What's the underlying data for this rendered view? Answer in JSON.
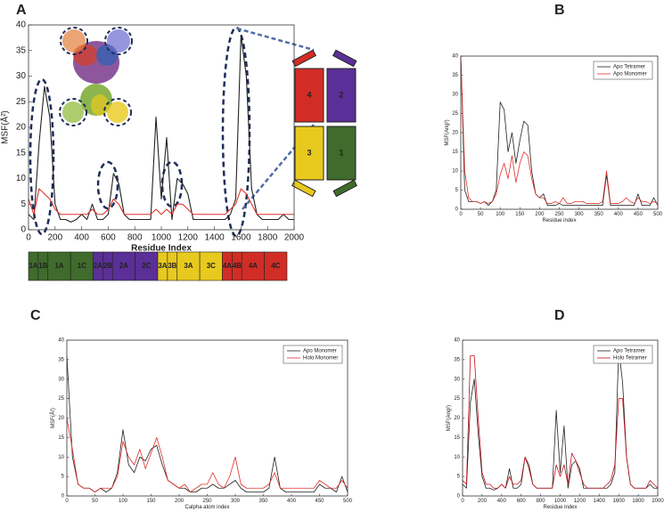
{
  "panel_labels": [
    "A",
    "B",
    "C",
    "D"
  ],
  "domain_bar": [
    {
      "label": "1A",
      "color": "#3f6b2c"
    },
    {
      "label": "1B",
      "color": "#3f6b2c"
    },
    {
      "label": "1A",
      "color": "#3f6b2c"
    },
    {
      "label": "1C",
      "color": "#3f6b2c"
    },
    {
      "label": "2A",
      "color": "#5a2f97"
    },
    {
      "label": "2B",
      "color": "#5a2f97"
    },
    {
      "label": "2A",
      "color": "#5a2f97"
    },
    {
      "label": "2C",
      "color": "#5a2f97"
    },
    {
      "label": "3A",
      "color": "#e8c91e"
    },
    {
      "label": "3B",
      "color": "#e8c91e"
    },
    {
      "label": "3A",
      "color": "#e8c91e"
    },
    {
      "label": "3C",
      "color": "#e8c91e"
    },
    {
      "label": "4A",
      "color": "#d12d26"
    },
    {
      "label": "4B",
      "color": "#d12d26"
    },
    {
      "label": "4A",
      "color": "#d12d26"
    },
    {
      "label": "4C",
      "color": "#d12d26"
    }
  ],
  "schematic": {
    "boxes": [
      "4",
      "2",
      "3",
      "1"
    ]
  },
  "chart_data": [
    {
      "type": "line",
      "xlabel": "Residue Index",
      "ylabel": "MSF(Å²)",
      "x": [
        0,
        40,
        80,
        120,
        160,
        200,
        240,
        280,
        320,
        360,
        400,
        440,
        480,
        520,
        560,
        600,
        640,
        680,
        720,
        760,
        800,
        840,
        880,
        920,
        960,
        1000,
        1040,
        1080,
        1120,
        1160,
        1200,
        1240,
        1280,
        1320,
        1360,
        1400,
        1440,
        1480,
        1520,
        1560,
        1600,
        1640,
        1680,
        1720,
        1760,
        1800,
        1840,
        1880,
        1920,
        1960,
        2000
      ],
      "series": [
        {
          "color": "#222222",
          "values": [
            3,
            2,
            17,
            28,
            22,
            5,
            2,
            2,
            1.5,
            2,
            3,
            2,
            5,
            2,
            2,
            3,
            11,
            9,
            3,
            2,
            2,
            2,
            2,
            2,
            22,
            6,
            18,
            2,
            10,
            9,
            7,
            2,
            2,
            2,
            2,
            2,
            2,
            2,
            3,
            6,
            38,
            30,
            8,
            3,
            2,
            2,
            2,
            2,
            3,
            2,
            2
          ]
        },
        {
          "color": "#e0302a",
          "values": [
            6,
            3,
            8,
            7,
            6,
            4,
            3,
            3,
            3,
            3,
            3,
            3,
            4,
            3,
            3,
            4,
            6,
            5,
            3,
            3,
            3,
            3,
            3,
            3,
            4,
            3,
            4,
            3,
            5,
            5,
            4,
            3,
            3,
            3,
            3,
            3,
            3,
            3,
            4,
            5,
            8,
            7,
            5,
            3,
            3,
            3,
            3,
            3,
            3,
            3,
            3
          ]
        }
      ],
      "xlim": [
        0,
        2000
      ],
      "xticks": [
        0,
        200,
        400,
        600,
        800,
        1000,
        1200,
        1400,
        1600,
        1800,
        2000
      ],
      "ylim": [
        0,
        40
      ],
      "yticks": [
        0,
        5,
        10,
        15,
        20,
        25,
        30,
        35,
        40
      ]
    },
    {
      "type": "line",
      "xlabel": "Residue index",
      "ylabel": "MSF(Ang²)",
      "x": [
        0,
        10,
        20,
        30,
        40,
        50,
        60,
        70,
        80,
        90,
        100,
        110,
        120,
        130,
        140,
        150,
        160,
        170,
        180,
        190,
        200,
        210,
        220,
        230,
        240,
        250,
        260,
        270,
        280,
        290,
        300,
        310,
        320,
        330,
        340,
        350,
        360,
        370,
        380,
        390,
        400,
        410,
        420,
        430,
        440,
        450,
        460,
        470,
        480,
        490,
        500
      ],
      "series": [
        {
          "name": "Apo Tetramer",
          "color": "#222222",
          "values": [
            40,
            5,
            2,
            2,
            2,
            1.5,
            2,
            1,
            2,
            5,
            28,
            26,
            15,
            20,
            12,
            18,
            23,
            22,
            10,
            4,
            3,
            4,
            1,
            1,
            1,
            1.5,
            1,
            1,
            1,
            1,
            1,
            1,
            1,
            1,
            1,
            1,
            1,
            9,
            1,
            1,
            1,
            1,
            1,
            1,
            1,
            4,
            1,
            1,
            1,
            3,
            1
          ]
        },
        {
          "name": "Apo Monomer",
          "color": "#e0302a",
          "values": [
            40,
            10,
            3,
            2,
            2,
            1.5,
            2,
            1.5,
            2,
            4,
            9,
            12,
            8,
            14,
            7,
            12,
            15,
            14,
            8,
            4,
            3,
            3,
            1.5,
            1.5,
            2,
            1.5,
            3,
            1.5,
            1.5,
            2,
            2,
            2,
            1.5,
            1.5,
            1.5,
            1.5,
            2,
            10,
            1.5,
            1.5,
            1.5,
            2,
            3,
            2,
            1.5,
            3,
            2,
            2,
            1.5,
            2,
            1.5
          ]
        }
      ],
      "xlim": [
        0,
        500
      ],
      "xticks": [
        0,
        50,
        100,
        150,
        200,
        250,
        300,
        350,
        400,
        450,
        500
      ],
      "ylim": [
        0,
        40
      ],
      "yticks": [
        0,
        5,
        10,
        15,
        20,
        25,
        30,
        35,
        40
      ],
      "legend": "upper right"
    },
    {
      "type": "line",
      "xlabel": "Calpha atom index",
      "ylabel": "MSF(Å²)",
      "x": [
        0,
        10,
        20,
        30,
        40,
        50,
        60,
        70,
        80,
        90,
        100,
        110,
        120,
        130,
        140,
        150,
        160,
        170,
        180,
        190,
        200,
        210,
        220,
        230,
        240,
        250,
        260,
        270,
        280,
        290,
        300,
        310,
        320,
        330,
        340,
        350,
        360,
        370,
        380,
        390,
        400,
        410,
        420,
        430,
        440,
        450,
        460,
        470,
        480,
        490,
        500
      ],
      "series": [
        {
          "name": "Apo Monomer",
          "color": "#222222",
          "values": [
            36,
            10,
            3,
            2,
            2,
            1,
            2,
            1,
            2,
            6,
            17,
            8,
            6,
            10,
            9,
            12,
            13,
            8,
            4,
            3,
            2,
            2,
            1,
            1,
            2,
            2,
            3,
            2,
            2,
            3,
            4,
            2,
            1,
            1,
            1,
            1,
            2,
            10,
            2,
            1,
            1,
            1,
            1,
            1,
            1,
            3,
            2,
            2,
            1,
            5,
            1
          ]
        },
        {
          "name": "Holo Monomer",
          "color": "#e0302a",
          "values": [
            20,
            12,
            3,
            2,
            2,
            1,
            2,
            2,
            2,
            5,
            14,
            10,
            8,
            12,
            7,
            11,
            15,
            10,
            4,
            3,
            2,
            3,
            1,
            2,
            3,
            3,
            6,
            3,
            2,
            5,
            10,
            3,
            2,
            2,
            2,
            2,
            3,
            6,
            2,
            2,
            2,
            2,
            2,
            2,
            2,
            4,
            3,
            2,
            2,
            4,
            2
          ]
        }
      ],
      "xlim": [
        0,
        500
      ],
      "xticks": [
        0,
        50,
        100,
        150,
        200,
        250,
        300,
        350,
        400,
        450,
        500
      ],
      "ylim": [
        0,
        40
      ],
      "yticks": [
        0,
        5,
        10,
        15,
        20,
        25,
        30,
        35,
        40
      ],
      "legend": "upper right"
    },
    {
      "type": "line",
      "xlabel": "Residue index",
      "ylabel": "MSF(Ang²)",
      "x": [
        0,
        40,
        80,
        120,
        160,
        200,
        240,
        280,
        320,
        360,
        400,
        440,
        480,
        520,
        560,
        600,
        640,
        680,
        720,
        760,
        800,
        840,
        880,
        920,
        960,
        1000,
        1040,
        1080,
        1120,
        1160,
        1200,
        1240,
        1280,
        1320,
        1360,
        1400,
        1440,
        1480,
        1520,
        1560,
        1600,
        1640,
        1680,
        1720,
        1760,
        1800,
        1840,
        1880,
        1920,
        1960,
        2000
      ],
      "series": [
        {
          "name": "Apo Tetramer",
          "color": "#222222",
          "values": [
            3,
            2,
            24,
            30,
            16,
            5,
            2,
            2,
            1.5,
            2,
            3,
            2,
            7,
            2,
            2,
            3,
            10,
            8,
            3,
            2,
            2,
            2,
            2,
            2,
            22,
            6,
            18,
            2,
            8,
            9,
            7,
            2,
            2,
            2,
            2,
            2,
            2,
            2,
            3,
            6,
            38,
            29,
            10,
            3,
            2,
            2,
            2,
            2,
            3,
            2,
            2
          ]
        },
        {
          "name": "Holo Tetramer",
          "color": "#c0101a",
          "values": [
            4,
            3,
            36,
            36,
            20,
            6,
            3,
            3,
            2,
            2,
            3,
            2,
            5,
            3,
            3,
            4,
            10,
            7,
            3,
            2,
            2,
            2,
            2,
            2,
            8,
            5,
            8,
            3,
            11,
            9,
            6,
            3,
            2,
            2,
            2,
            2,
            2,
            3,
            4,
            8,
            25,
            25,
            10,
            3,
            2,
            2,
            2,
            2,
            4,
            3,
            2
          ]
        }
      ],
      "xlim": [
        0,
        2000
      ],
      "xticks": [
        0,
        200,
        400,
        600,
        800,
        1000,
        1200,
        1400,
        1600,
        1800,
        2000
      ],
      "ylim": [
        0,
        40
      ],
      "yticks": [
        0,
        5,
        10,
        15,
        20,
        25,
        30,
        35,
        40
      ],
      "legend": "upper right"
    }
  ]
}
